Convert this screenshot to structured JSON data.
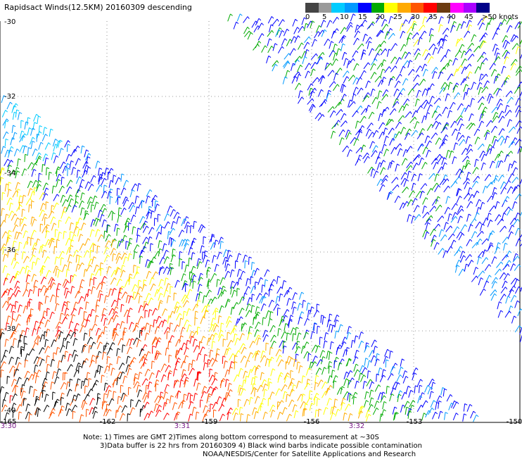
{
  "title": "Rapidsact Winds(12.5KM) 20160309 descending",
  "legend": {
    "colors": [
      "#444444",
      "#9a9a9a",
      "#00ccff",
      "#0099ff",
      "#0000ff",
      "#00aa00",
      "#ffff00",
      "#ffaa00",
      "#ff5500",
      "#ff0000",
      "#6b3a10",
      "#ff00ff",
      "#aa00ff",
      "#000088"
    ],
    "labels": [
      "0",
      "5",
      "10",
      "15",
      "20",
      "25",
      "30",
      "35",
      "40",
      "45",
      ">50 knots"
    ]
  },
  "lat_labels": [
    "-30",
    "-32",
    "-34",
    "-36",
    "-38",
    "-40"
  ],
  "lon_labels": [
    "-165",
    "-162",
    "-159",
    "-156",
    "-153",
    "-150"
  ],
  "time_labels": [
    "3:30",
    "3:31",
    "3:32"
  ],
  "notes": [
    "Note: 1) Times are GMT 2)Times along bottom correspond to measurement at ~30S",
    "3)Data buffer is 22 hrs from 20160309 4) Black wind barbs indicate possible contamination",
    "NOAA/NESDIS/Center for Satellite Applications and Research"
  ]
}
